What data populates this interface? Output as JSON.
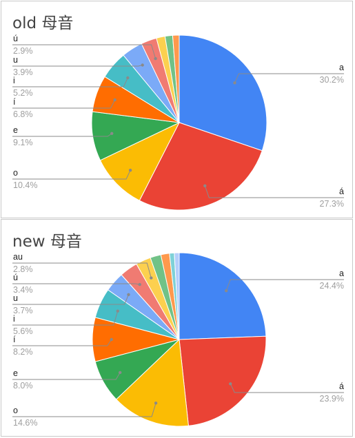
{
  "chart_data": [
    {
      "type": "pie",
      "title": "old 母音",
      "categories": [
        "a",
        "á",
        "o",
        "e",
        "í",
        "i",
        "u",
        "ú",
        "",
        "",
        ""
      ],
      "values": [
        30.2,
        27.3,
        10.4,
        9.1,
        6.8,
        5.2,
        3.9,
        2.9,
        1.6,
        1.4,
        1.2
      ],
      "labels": [
        {
          "name": "a",
          "pct": "30.2%"
        },
        {
          "name": "á",
          "pct": "27.3%"
        },
        {
          "name": "o",
          "pct": "10.4%"
        },
        {
          "name": "e",
          "pct": "9.1%"
        },
        {
          "name": "í",
          "pct": "6.8%"
        },
        {
          "name": "i",
          "pct": "5.2%"
        },
        {
          "name": "u",
          "pct": "3.9%"
        },
        {
          "name": "ú",
          "pct": "2.9%"
        }
      ],
      "colors": [
        "#4285F4",
        "#EA4335",
        "#FBBC04",
        "#34A853",
        "#FF6D01",
        "#46BDC6",
        "#7BAAF7",
        "#F07B72",
        "#FCD04F",
        "#71C287",
        "#FF994D"
      ]
    },
    {
      "type": "pie",
      "title": "new 母音",
      "categories": [
        "a",
        "á",
        "o",
        "e",
        "í",
        "i",
        "u",
        "ú",
        "au",
        "",
        "",
        "",
        ""
      ],
      "values": [
        24.4,
        23.9,
        14.6,
        8.0,
        8.2,
        5.6,
        3.7,
        3.4,
        2.8,
        2.0,
        1.6,
        0.9,
        0.9
      ],
      "labels": [
        {
          "name": "a",
          "pct": "24.4%"
        },
        {
          "name": "á",
          "pct": "23.9%"
        },
        {
          "name": "o",
          "pct": "14.6%"
        },
        {
          "name": "e",
          "pct": "8.0%"
        },
        {
          "name": "í",
          "pct": "8.2%"
        },
        {
          "name": "i",
          "pct": "5.6%"
        },
        {
          "name": "u",
          "pct": "3.7%"
        },
        {
          "name": "ú",
          "pct": "3.4%"
        },
        {
          "name": "au",
          "pct": "2.8%"
        }
      ],
      "colors": [
        "#4285F4",
        "#EA4335",
        "#FBBC04",
        "#34A853",
        "#FF6D01",
        "#46BDC6",
        "#7BAAF7",
        "#F07B72",
        "#FCD04F",
        "#71C287",
        "#FF994D",
        "#7ED1D7",
        "#B3CEFB"
      ]
    }
  ]
}
